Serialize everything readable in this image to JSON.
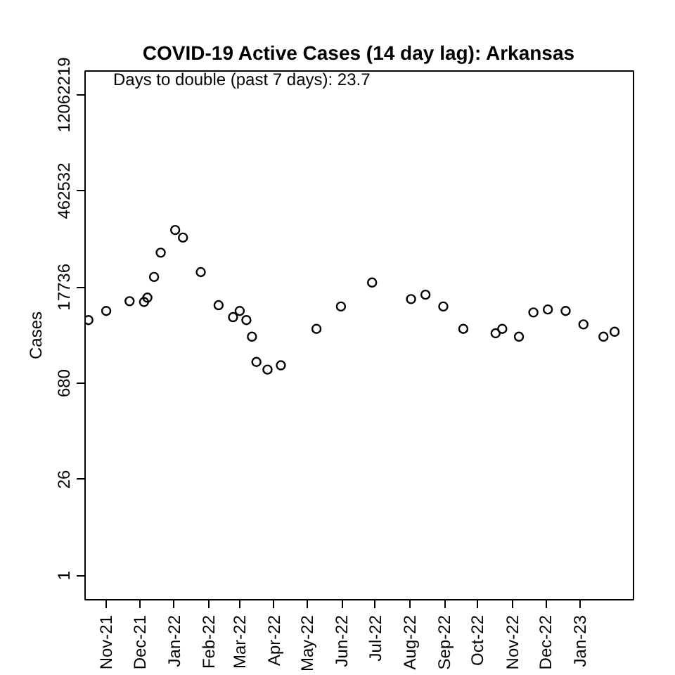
{
  "chart_data": {
    "type": "scatter",
    "title": "COVID-19 Active Cases (14 day lag): Arkansas",
    "ylabel": "Cases",
    "annotations": [
      "Days to double (past 7 days): 23.7"
    ],
    "log": "y",
    "grid": false,
    "marker": "circle",
    "x": [
      "2021-10-16",
      "2021-11-01",
      "2021-11-22",
      "2021-12-05",
      "2021-12-08",
      "2021-12-14",
      "2021-12-20",
      "2022-01-02",
      "2022-01-09",
      "2022-01-25",
      "2022-02-10",
      "2022-02-23",
      "2022-03-01",
      "2022-03-07",
      "2022-03-12",
      "2022-03-16",
      "2022-03-26",
      "2022-04-07",
      "2022-05-09",
      "2022-05-31",
      "2022-06-28",
      "2022-08-02",
      "2022-08-15",
      "2022-08-31",
      "2022-09-18",
      "2022-10-17",
      "2022-10-23",
      "2022-11-07",
      "2022-11-20",
      "2022-12-03",
      "2022-12-19",
      "2023-01-04",
      "2023-01-22",
      "2023-02-01"
    ],
    "series": [
      {
        "color": "#000000",
        "values": [
          5800,
          7900,
          11000,
          10700,
          12400,
          25000,
          57000,
          123000,
          95000,
          29500,
          9600,
          6400,
          7900,
          5800,
          3300,
          1400,
          1080,
          1250,
          4300,
          9200,
          20700,
          11800,
          13700,
          9200,
          4300,
          3700,
          4300,
          3300,
          7500,
          8300,
          7900,
          5000,
          3300,
          3900
        ]
      }
    ],
    "xlim": [
      "2021-10-13",
      "2023-02-18"
    ],
    "xticks": [
      {
        "value": "2021-11-01",
        "label": "Nov-21"
      },
      {
        "value": "2021-12-01",
        "label": "Dec-21"
      },
      {
        "value": "2022-01-01",
        "label": "Jan-22"
      },
      {
        "value": "2022-02-01",
        "label": "Feb-22"
      },
      {
        "value": "2022-03-01",
        "label": "Mar-22"
      },
      {
        "value": "2022-04-01",
        "label": "Apr-22"
      },
      {
        "value": "2022-05-01",
        "label": "May-22"
      },
      {
        "value": "2022-06-01",
        "label": "Jun-22"
      },
      {
        "value": "2022-07-01",
        "label": "Jul-22"
      },
      {
        "value": "2022-08-01",
        "label": "Aug-22"
      },
      {
        "value": "2022-09-01",
        "label": "Sep-22"
      },
      {
        "value": "2022-10-01",
        "label": "Oct-22"
      },
      {
        "value": "2022-11-01",
        "label": "Nov-22"
      },
      {
        "value": "2022-12-01",
        "label": "Dec-22"
      },
      {
        "value": "2023-01-01",
        "label": "Jan-23"
      }
    ],
    "ylim": [
      0.44,
      27000000
    ],
    "yticks": [
      1,
      26,
      680,
      17736,
      462532,
      12062219
    ]
  }
}
